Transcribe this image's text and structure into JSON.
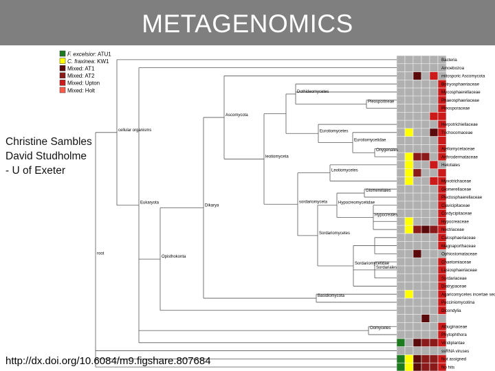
{
  "header": {
    "title": "METAGENOMICS",
    "background": "#7f7f7f"
  },
  "credits": {
    "lines": [
      "Christine Sambles",
      "David Studholme",
      "- U of Exeter"
    ]
  },
  "footer": {
    "doi": "http://dx.doi.org/10.6084/m9.figshare.807684"
  },
  "legend": [
    {
      "italic": "F. excelsior",
      "rest": ": ATU1",
      "color": "#1e7a1e"
    },
    {
      "italic": "C. fraxinea",
      "rest": ": KW1",
      "color": "#ffff00"
    },
    {
      "italic": "",
      "rest": "Mixed: AT1",
      "color": "#5a0a0a"
    },
    {
      "italic": "",
      "rest": "Mixed: AT2",
      "color": "#8b1a1a"
    },
    {
      "italic": "",
      "rest": "Mixed: Upton",
      "color": "#cc1a1a"
    },
    {
      "italic": "",
      "rest": "Mixed: Holt",
      "color": "#ff5a4a"
    }
  ],
  "colors": {
    "empty": "#b0b0b0",
    "line": "#555555"
  },
  "taxa": [
    "Bacteria",
    "Amoebozoa",
    "mitosporic Ascomycota",
    "Botryosphaeriaceae",
    "Mycosphaerellaceae",
    "Phaeosphaeriaceae",
    "Pleosporaceae",
    "Herpotrichiellaceae",
    "Trichocomaceae",
    "Ajellomycetaceae",
    "Arthrodermataceae",
    "Helotiales",
    "Myxotrichaceae",
    "Glomerellaceae",
    "Plectosphaerellaceae",
    "Clavicipitaceae",
    "Cordycipitaceae",
    "Hypocreaceae",
    "Nectriaceae",
    "Calosphaeriaceae",
    "Magnaporthaceae",
    "Ophiostomataceae",
    "Chaetomiaceae",
    "Lasiosphaeriaceae",
    "Sordariaceae",
    "Diatrypaceae",
    "Agaricomycetes incertae sedis",
    "Pucciniomycotina",
    "Dicondylia",
    "Albuginaceae",
    "Phytophthora",
    "Viridiplantae",
    "ssRNA viruses",
    "Not assigned",
    "No hits"
  ],
  "grid": [
    [
      0,
      0,
      0,
      0,
      0,
      0
    ],
    [
      0,
      0,
      0,
      0,
      0,
      0
    ],
    [
      0,
      0,
      3,
      0,
      5,
      0
    ],
    [
      0,
      0,
      0,
      0,
      0,
      5
    ],
    [
      0,
      0,
      0,
      0,
      0,
      5
    ],
    [
      0,
      0,
      0,
      0,
      0,
      5
    ],
    [
      0,
      0,
      0,
      0,
      0,
      5
    ],
    [
      0,
      0,
      0,
      0,
      5,
      5
    ],
    [
      0,
      0,
      0,
      0,
      0,
      5
    ],
    [
      0,
      2,
      0,
      0,
      3,
      5
    ],
    [
      0,
      0,
      0,
      0,
      0,
      5
    ],
    [
      0,
      0,
      0,
      0,
      0,
      5
    ],
    [
      0,
      2,
      4,
      4,
      0,
      5
    ],
    [
      0,
      2,
      0,
      0,
      5,
      0
    ],
    [
      0,
      2,
      4,
      0,
      0,
      5
    ],
    [
      0,
      2,
      0,
      0,
      5,
      5
    ],
    [
      0,
      0,
      0,
      0,
      0,
      5
    ],
    [
      0,
      0,
      0,
      0,
      0,
      5
    ],
    [
      0,
      0,
      0,
      0,
      0,
      5
    ],
    [
      0,
      0,
      0,
      0,
      0,
      5
    ],
    [
      0,
      2,
      0,
      0,
      0,
      5
    ],
    [
      0,
      2,
      4,
      3,
      4,
      5
    ],
    [
      0,
      0,
      0,
      0,
      0,
      5
    ],
    [
      0,
      0,
      0,
      0,
      0,
      5
    ],
    [
      0,
      0,
      3,
      0,
      0,
      0
    ],
    [
      0,
      0,
      0,
      0,
      0,
      5
    ],
    [
      0,
      0,
      0,
      0,
      0,
      5
    ],
    [
      0,
      0,
      0,
      0,
      0,
      5
    ],
    [
      0,
      0,
      0,
      0,
      0,
      5
    ],
    [
      0,
      2,
      0,
      0,
      0,
      5
    ],
    [
      0,
      0,
      0,
      0,
      0,
      5
    ],
    [
      0,
      0,
      0,
      0,
      0,
      5
    ],
    [
      0,
      0,
      0,
      3,
      0,
      0
    ],
    [
      0,
      0,
      0,
      0,
      0,
      5
    ],
    [
      0,
      0,
      0,
      0,
      0,
      5
    ],
    [
      1,
      0,
      3,
      4,
      4,
      5
    ],
    [
      0,
      0,
      0,
      0,
      0,
      0
    ],
    [
      1,
      2,
      3,
      4,
      4,
      5
    ],
    [
      1,
      2,
      3,
      4,
      4,
      5
    ]
  ],
  "nodes": {
    "cellular_organisms": "cellular organisms",
    "root": "root",
    "eukaryota": "Eukaryota",
    "opisthokonta": "Opisthokonta",
    "dikarya": "Dikarya",
    "ascomycota": "Ascomycota",
    "leotiomyceta": "leotiomyceta",
    "dothideomycetes": "Dothideomycetes",
    "pleosporineae": "Pleosporineae",
    "eurotiomycetes": "Eurotiomycetes",
    "eurotiomycetidae": "Eurotiomycetidae",
    "onygenales": "Onygenales",
    "leotiomycetes": "Leotiomycetes",
    "glomerellales": "Glomerellales",
    "hypocreomycetidae": "Hypocreomycetidae",
    "hypocreales": "Hypocreales",
    "sordariomyceta": "sordariomyceta",
    "sordariomycetes": "Sordariomycetes",
    "sordariomycetidae": "Sordariomycetidae",
    "sordariales": "Sordariales",
    "basidiomycota": "Basidiomycota",
    "oomycetes": "Oomycetes"
  }
}
